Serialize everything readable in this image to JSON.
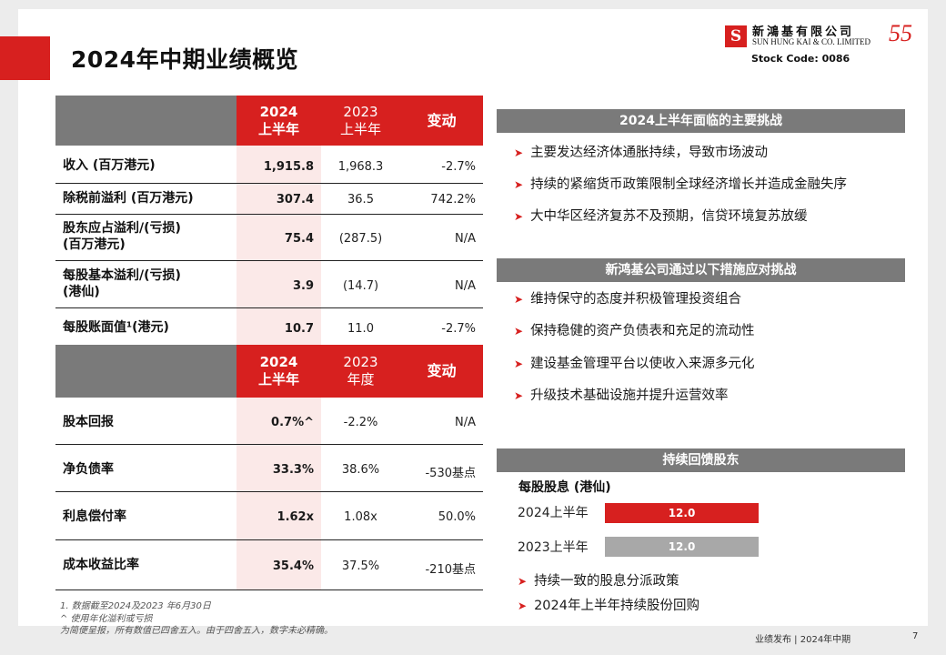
{
  "title": "2024年中期业绩概览",
  "logo": {
    "mark": "S",
    "cn": "新鴻基有限公司",
    "en": "SUN HUNG KAI & CO. LIMITED",
    "anniv": "55"
  },
  "stock_code": "Stock Code: 0086",
  "table1": {
    "header": {
      "c1a": "2024",
      "c1b": "上半年",
      "c2a": "2023",
      "c2b": "上半年",
      "c3": "变动"
    },
    "rows": [
      {
        "label": "收入 (百万港元)",
        "v24": "1,915.8",
        "v23": "1,968.3",
        "chg": "-2.7%"
      },
      {
        "label": "除税前溢利 (百万港元)",
        "v24": "307.4",
        "v23": "36.5",
        "chg": "742.2%"
      },
      {
        "label1": "股东应占溢利/(亏损)",
        "label2": "(百万港元)",
        "v24": "75.4",
        "v23": "(287.5)",
        "chg": "N/A"
      },
      {
        "label1": "每股基本溢利/(亏损)",
        "label2": "(港仙)",
        "v24": "3.9",
        "v23": "(14.7)",
        "chg": "N/A"
      },
      {
        "label": "每股账面值¹(港元)",
        "v24": "10.7",
        "v23": "11.0",
        "chg": "-2.7%"
      }
    ]
  },
  "table2": {
    "header": {
      "c1a": "2024",
      "c1b": "上半年",
      "c2a": "2023",
      "c2b": "年度",
      "c3": "变动"
    },
    "rows": [
      {
        "label": "股本回报",
        "v24": "0.7%^",
        "v23": "-2.2%",
        "chg": "N/A"
      },
      {
        "label": "净负债率",
        "v24": "33.3%",
        "v23": "38.6%",
        "chg": "-530基点"
      },
      {
        "label": "利息偿付率",
        "v24": "1.62x",
        "v23": "1.08x",
        "chg": "50.0%"
      },
      {
        "label": "成本收益比率",
        "v24": "35.4%",
        "v23": "37.5%",
        "chg": "-210基点"
      }
    ]
  },
  "challenges": {
    "title": "2024上半年面临的主要挑战",
    "items": [
      "主要发达经济体通胀持续，导致市场波动",
      "持续的紧缩货币政策限制全球经济增长并造成金融失序",
      "大中华区经济复苏不及预期，信贷环境复苏放缓"
    ]
  },
  "measures": {
    "title": "新鸿基公司通过以下措施应对挑战",
    "items": [
      "维持保守的态度并积极管理投资组合",
      "保持稳健的资产负债表和充足的流动性",
      "建设基金管理平台以使收入来源多元化",
      "升级技术基础设施并提升运营效率"
    ]
  },
  "dividend": {
    "title": "持续回馈股东",
    "subtitle": "每股股息 (港仙)",
    "bars": [
      {
        "label": "2024上半年",
        "value": "12.0",
        "color": "#d7201f"
      },
      {
        "label": "2023上半年",
        "value": "12.0",
        "color": "#a8a8a8"
      }
    ],
    "items": [
      "持续一致的股息分派政策",
      "2024年上半年持续股份回购"
    ]
  },
  "footnotes": [
    "1. 数据截至2024及2023 年6月30日",
    "^ 使用年化溢利或亏损",
    "为简便呈报，所有数值已四舍五入。由于四舍五入，数字未必精确。"
  ],
  "footer": "业绩发布 | 2024年中期",
  "page_number": "7"
}
